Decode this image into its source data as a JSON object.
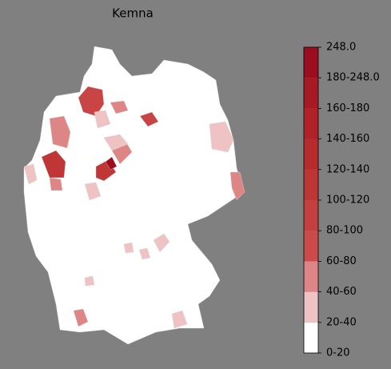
{
  "title": "Kemna",
  "colorbar": {
    "labels": [
      "0-20",
      "20-40",
      "40-60",
      "60-80",
      "80-100",
      "100-120",
      "120-140",
      "140-160",
      "160-180",
      "180-248.0",
      "248.0"
    ],
    "colors": [
      "#ffffff",
      "#efc3c3",
      "#de8585",
      "#cb4a4a",
      "#c44040",
      "#bd3535",
      "#b72b2d",
      "#b02227",
      "#a81a23",
      "#9c0d1e"
    ]
  }
}
